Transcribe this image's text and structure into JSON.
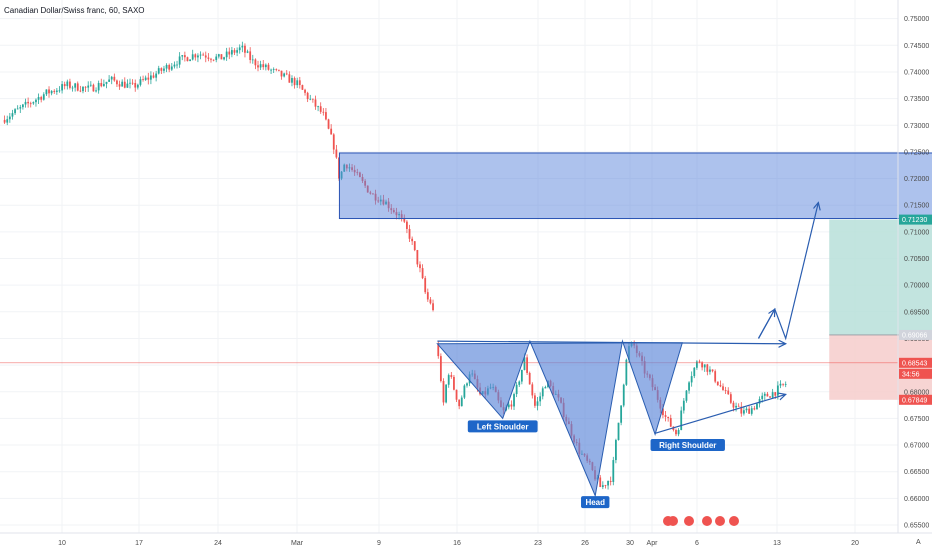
{
  "header": {
    "symbol_title": "Canadian Dollar/Swiss franc, 60, SAXO"
  },
  "colors": {
    "up_candle": "#26a69a",
    "down_candle": "#ef5350",
    "zone_fill": "#5b86dc",
    "zone_stroke": "#2952b3",
    "pattern_fill": "#5a86d8",
    "pattern_stroke": "#2a5db0",
    "target_fill": "#b7dfd9",
    "stop_fill": "#f6cdcb",
    "label_bg": "#1e66c8",
    "current_price_line": "#ef5350",
    "axis_text": "#4a4a4a"
  },
  "chart_data": {
    "type": "candlestick",
    "instrument": "Canadian Dollar/Swiss franc",
    "timeframe": "60",
    "source": "SAXO",
    "x_ticks": [
      "10",
      "17",
      "24",
      "Mar",
      "9",
      "16",
      "23",
      "26",
      "30",
      "Apr",
      "6",
      "13",
      "20"
    ],
    "y_ticks": [
      "0.75000",
      "0.74500",
      "0.74000",
      "0.73500",
      "0.73000",
      "0.72500",
      "0.72000",
      "0.71500",
      "0.71000",
      "0.70500",
      "0.70000",
      "0.69500",
      "0.69000",
      "0.68500",
      "0.68000",
      "0.67500",
      "0.67000",
      "0.66500",
      "0.66000",
      "0.65500"
    ],
    "y_range": [
      0.6535,
      0.7535
    ],
    "price_path": [
      [
        0,
        0.731
      ],
      [
        2,
        0.7335
      ],
      [
        4,
        0.736
      ],
      [
        6,
        0.7375
      ],
      [
        8,
        0.7368
      ],
      [
        10,
        0.7385
      ],
      [
        12,
        0.7372
      ],
      [
        14,
        0.7395
      ],
      [
        16,
        0.742
      ],
      [
        18,
        0.7435
      ],
      [
        20,
        0.7425
      ],
      [
        22,
        0.7445
      ],
      [
        23,
        0.742
      ],
      [
        25,
        0.74
      ],
      [
        27,
        0.738
      ],
      [
        28,
        0.7355
      ],
      [
        29.5,
        0.732
      ],
      [
        30.5,
        0.726
      ],
      [
        31,
        0.72
      ],
      [
        31.5,
        0.723
      ],
      [
        32,
        0.722
      ],
      [
        33,
        0.7195
      ],
      [
        34,
        0.717
      ],
      [
        35,
        0.716
      ],
      [
        36.5,
        0.713
      ],
      [
        37.5,
        0.709
      ],
      [
        38.5,
        0.702
      ],
      [
        39,
        0.6975
      ],
      [
        39.5,
        0.6965
      ],
      [
        40,
        0.689
      ],
      [
        40.5,
        0.677
      ],
      [
        41,
        0.684
      ],
      [
        42,
        0.6775
      ],
      [
        43,
        0.684
      ],
      [
        44,
        0.679
      ],
      [
        45,
        0.681
      ],
      [
        46,
        0.676
      ],
      [
        47,
        0.6785
      ],
      [
        48,
        0.686
      ],
      [
        49,
        0.677
      ],
      [
        50,
        0.682
      ],
      [
        51,
        0.679
      ],
      [
        52,
        0.674
      ],
      [
        53,
        0.669
      ],
      [
        54,
        0.666
      ],
      [
        55,
        0.662
      ],
      [
        56,
        0.664
      ],
      [
        57,
        0.68
      ],
      [
        57.5,
        0.688
      ],
      [
        58,
        0.689
      ],
      [
        59,
        0.684
      ],
      [
        60,
        0.68
      ],
      [
        61,
        0.675
      ],
      [
        62,
        0.672
      ],
      [
        63,
        0.682
      ],
      [
        64,
        0.686
      ],
      [
        65,
        0.684
      ],
      [
        66,
        0.681
      ],
      [
        67,
        0.678
      ],
      [
        68,
        0.676
      ],
      [
        69,
        0.677
      ],
      [
        70,
        0.679
      ],
      [
        71,
        0.68
      ],
      [
        72,
        0.6815
      ]
    ],
    "drawings": {
      "resistance_zone": {
        "day_start": 31,
        "day_end": 86,
        "price_top": 0.7248,
        "price_bottom": 0.7125
      },
      "neckline": {
        "day_start": 40,
        "price_start": 0.6895,
        "day_end": 72,
        "price_end": 0.689
      },
      "pattern_points": [
        [
          40,
          0.689
        ],
        [
          46,
          0.675
        ],
        [
          48.5,
          0.6895
        ],
        [
          54.5,
          0.6605
        ],
        [
          57,
          0.6895
        ],
        [
          60,
          0.672
        ],
        [
          62.5,
          0.6892
        ]
      ],
      "support_trendline": {
        "day_start": 60,
        "price_start": 0.6722,
        "day_end": 72,
        "price_end": 0.6795
      },
      "projection_arrow": [
        [
          69.5,
          0.69
        ],
        [
          71,
          0.6955
        ],
        [
          72,
          0.69
        ],
        [
          75,
          0.7155
        ]
      ],
      "risk_reward": {
        "day_start": 76,
        "day_end": 86,
        "target": 0.7123,
        "entry": 0.69066,
        "stop": 0.67849
      }
    },
    "pattern_labels": [
      {
        "text": "Left Shoulder",
        "day": 46,
        "price": 0.6735
      },
      {
        "text": "Head",
        "day": 54.5,
        "price": 0.6593
      },
      {
        "text": "Right Shoulder",
        "day": 63,
        "price": 0.67
      }
    ],
    "price_tags": [
      {
        "label": "0.71230",
        "value": 0.7123,
        "color": "#26a69a"
      },
      {
        "label": "0.69066",
        "value": 0.69066,
        "color": "#d1d4dc"
      },
      {
        "label": "0.68543",
        "value": 0.68543,
        "color": "#ef5350"
      },
      {
        "label": "34:56",
        "value": 0.68543,
        "color": "#ef5350"
      },
      {
        "label": "0.67849",
        "value": 0.67849,
        "color": "#ef5350"
      }
    ],
    "current_price": 0.68543
  }
}
